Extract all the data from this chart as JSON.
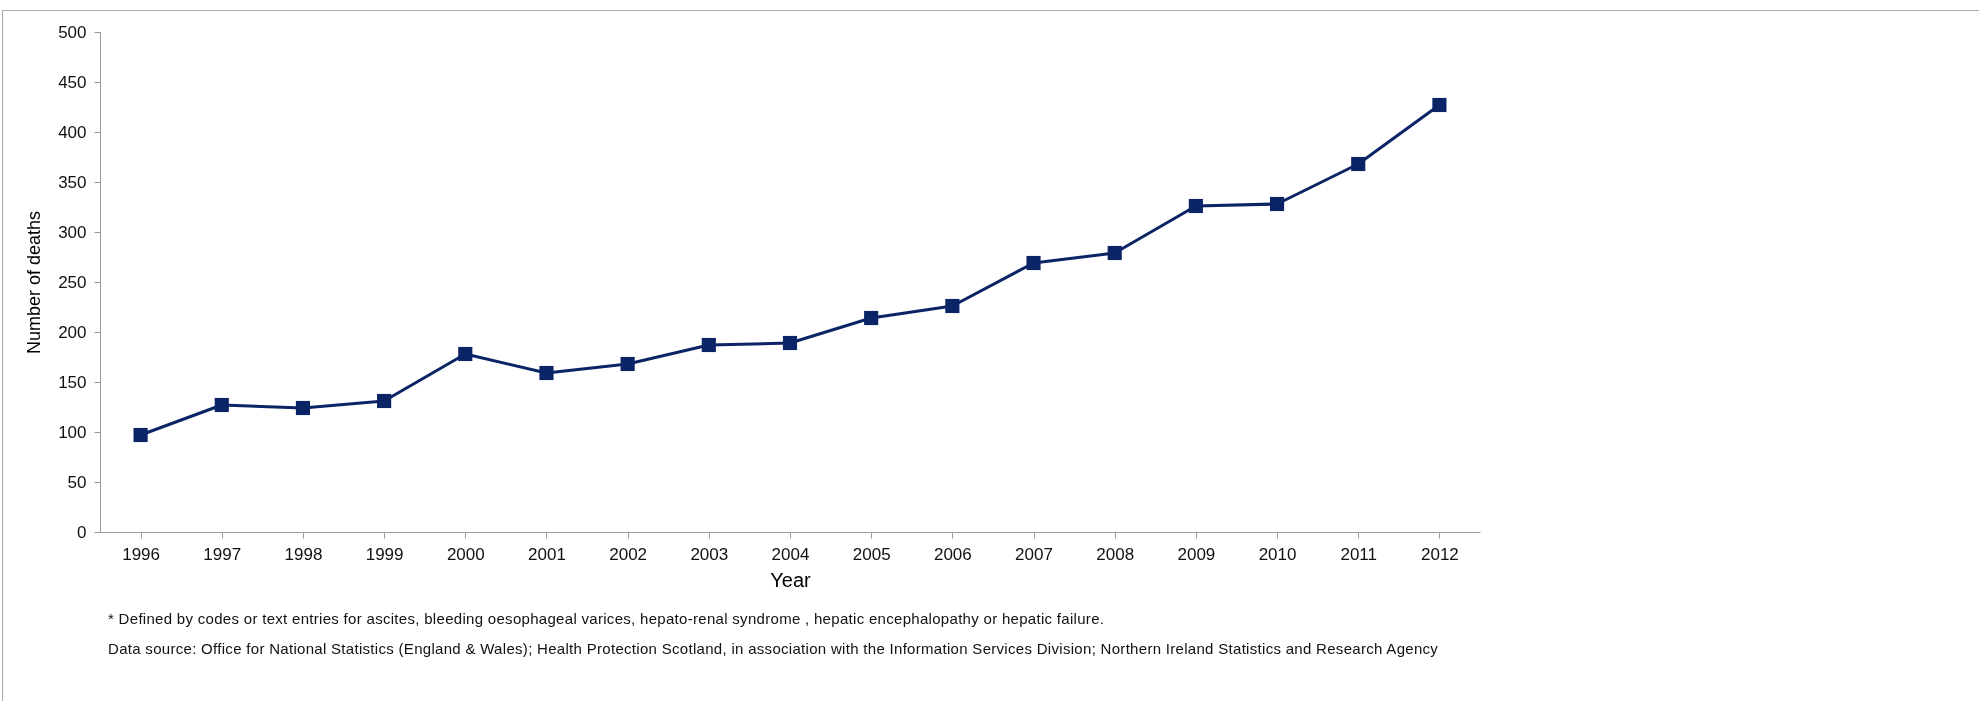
{
  "chart_data": {
    "type": "line",
    "xlabel": "Year",
    "ylabel": "Number of deaths",
    "categories": [
      "1996",
      "1997",
      "1998",
      "1999",
      "2000",
      "2001",
      "2002",
      "2003",
      "2004",
      "2005",
      "2006",
      "2007",
      "2008",
      "2009",
      "2010",
      "2011",
      "2012"
    ],
    "series": [
      {
        "color": "#0b2466",
        "values": [
          97,
          127,
          124,
          131,
          178,
          159,
          168,
          187,
          189,
          214,
          226,
          269,
          279,
          326,
          328,
          368,
          427
        ]
      }
    ],
    "ylim": [
      0,
      500
    ],
    "yticks": [
      0,
      50,
      100,
      150,
      200,
      250,
      300,
      350,
      400,
      450,
      500
    ],
    "grid": false,
    "legend": false,
    "marker": "square",
    "line_style": "solid",
    "annotations": [
      "* Defined by codes or text entries for ascites, bleeding oesophageal  varices, hepato-renal syndrome , hepatic encephalopathy or hepatic failure.",
      "Data source: Office for National Statistics (England & Wales); Health Protection Scotland, in association with the Information Services Division; Northern Ireland Statistics and Research Agency"
    ]
  }
}
